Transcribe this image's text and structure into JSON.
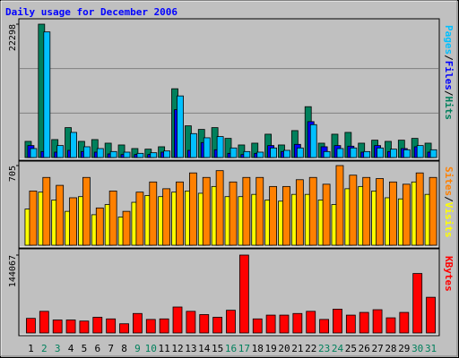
{
  "chart_data": [
    {
      "type": "bar",
      "title": "Daily usage for December 2006",
      "legend_separator": "/",
      "series": [
        {
          "name": "Hits",
          "color": "#00805c",
          "values": [
            2700,
            22298,
            3000,
            5000,
            2700,
            3000,
            2400,
            2100,
            1500,
            1400,
            1800,
            11500,
            5300,
            4700,
            5000,
            3200,
            2100,
            2400,
            3900,
            2100,
            4500,
            8500,
            2400,
            3900,
            4200,
            2400,
            2900,
            2700,
            2900,
            3200,
            2400
          ]
        },
        {
          "name": "Files",
          "color": "#0000ff",
          "values": [
            2000,
            1000,
            900,
            1200,
            1000,
            900,
            600,
            500,
            500,
            500,
            900,
            8000,
            1200,
            2500,
            1300,
            700,
            500,
            700,
            2000,
            1000,
            2200,
            6000,
            1800,
            2000,
            1900,
            900,
            2000,
            1000,
            1500,
            1800,
            900
          ]
        },
        {
          "name": "Pages",
          "color": "#00c0ff",
          "values": [
            1500,
            21000,
            2000,
            4200,
            1800,
            1500,
            1000,
            900,
            700,
            800,
            1100,
            10300,
            4000,
            3300,
            3500,
            1600,
            1000,
            900,
            1600,
            1200,
            1600,
            5500,
            1000,
            1500,
            1600,
            1000,
            1600,
            1400,
            1300,
            2000,
            1300
          ]
        }
      ],
      "ylim": [
        0,
        22298
      ],
      "yticks": [
        22298
      ],
      "grid": [
        7433,
        14865
      ]
    },
    {
      "type": "bar",
      "legend_separator": "/",
      "series": [
        {
          "name": "Visits",
          "color": "#ffff00",
          "values": [
            320,
            470,
            400,
            300,
            430,
            270,
            360,
            250,
            380,
            440,
            430,
            470,
            480,
            460,
            520,
            430,
            430,
            450,
            400,
            390,
            450,
            450,
            400,
            360,
            500,
            520,
            480,
            420,
            410,
            560,
            450
          ]
        },
        {
          "name": "Sites",
          "color": "#ff8000",
          "values": [
            480,
            600,
            530,
            420,
            600,
            330,
            480,
            300,
            470,
            560,
            500,
            560,
            640,
            600,
            660,
            560,
            600,
            600,
            520,
            520,
            580,
            600,
            540,
            705,
            620,
            600,
            590,
            560,
            540,
            640,
            600
          ]
        }
      ],
      "ylim": [
        0,
        705
      ],
      "yticks": [
        705
      ]
    },
    {
      "type": "bar",
      "series": [
        {
          "name": "KBytes",
          "color": "#ff0000",
          "values": [
            27000,
            40000,
            24000,
            24000,
            22000,
            29000,
            26000,
            17000,
            36000,
            25000,
            26000,
            48000,
            40000,
            34000,
            29000,
            42000,
            144067,
            26000,
            33000,
            33000,
            36000,
            40000,
            25000,
            44000,
            33000,
            38000,
            43000,
            28000,
            38000,
            110000,
            66000
          ]
        }
      ],
      "ylim": [
        0,
        144067
      ],
      "yticks": [
        144067
      ],
      "categories": [
        1,
        2,
        3,
        4,
        5,
        6,
        7,
        8,
        9,
        10,
        11,
        12,
        13,
        14,
        15,
        16,
        17,
        18,
        19,
        20,
        21,
        22,
        23,
        24,
        25,
        26,
        27,
        28,
        29,
        30,
        31
      ],
      "category_colors": [
        "#000000",
        "#00805c",
        "#00805c",
        "#000000",
        "#000000",
        "#000000",
        "#000000",
        "#000000",
        "#00805c",
        "#00805c",
        "#000000",
        "#000000",
        "#000000",
        "#000000",
        "#000000",
        "#00805c",
        "#00805c",
        "#000000",
        "#000000",
        "#000000",
        "#000000",
        "#000000",
        "#00805c",
        "#00805c",
        "#000000",
        "#000000",
        "#000000",
        "#000000",
        "#000000",
        "#00805c",
        "#00805c"
      ]
    }
  ]
}
